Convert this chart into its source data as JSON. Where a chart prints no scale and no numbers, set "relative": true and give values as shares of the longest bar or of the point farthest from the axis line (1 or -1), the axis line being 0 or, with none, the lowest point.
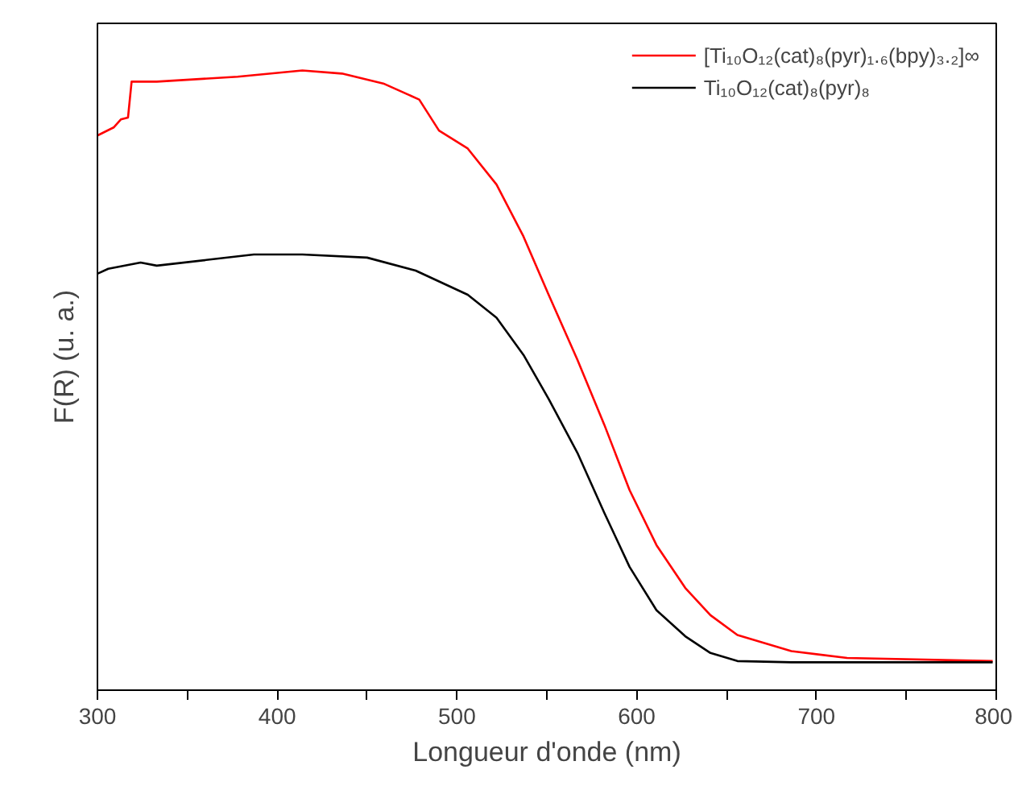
{
  "chart_data": {
    "type": "line",
    "relative": true,
    "xlabel": "Longueur d'onde (nm)",
    "ylabel": "F(R) (u. a.)",
    "xlim": [
      300,
      800
    ],
    "xticks": [
      300,
      {
        "value": 350,
        "label": null
      },
      400,
      {
        "value": 450,
        "label": null
      },
      500,
      {
        "value": 550,
        "label": null
      },
      600,
      {
        "value": 650,
        "label": null
      },
      700,
      {
        "value": 750,
        "label": null
      },
      800
    ],
    "legend": "top right",
    "grid": false,
    "marker": "none",
    "line_style": "solid",
    "series": [
      {
        "name": "[Ti₁₀O₁₂(cat)₈(pyr)₁.₆(bpy)₃.₂]∞",
        "color": "#ff0000",
        "x": [
          300,
          309,
          313,
          317,
          319,
          333,
          378,
          414,
          436,
          459,
          479,
          490,
          506,
          522,
          537,
          551,
          567,
          582,
          596,
          611,
          627,
          641,
          656,
          686,
          717,
          798
        ],
        "values": [
          0.895,
          0.908,
          0.921,
          0.924,
          0.982,
          0.982,
          0.99,
          1.0,
          0.995,
          0.979,
          0.953,
          0.903,
          0.874,
          0.816,
          0.732,
          0.638,
          0.533,
          0.428,
          0.323,
          0.234,
          0.165,
          0.121,
          0.089,
          0.063,
          0.052,
          0.047
        ]
      },
      {
        "name": "Ti₁₀O₁₂(cat)₈(pyr)₈",
        "color": "#000000",
        "x": [
          300,
          306,
          324,
          333,
          387,
          414,
          450,
          477,
          506,
          522,
          537,
          551,
          567,
          582,
          596,
          611,
          627,
          641,
          656,
          686,
          798
        ],
        "values": [
          0.672,
          0.68,
          0.69,
          0.685,
          0.703,
          0.703,
          0.698,
          0.677,
          0.638,
          0.601,
          0.541,
          0.47,
          0.383,
          0.286,
          0.199,
          0.129,
          0.087,
          0.06,
          0.047,
          0.045,
          0.045
        ]
      }
    ]
  }
}
